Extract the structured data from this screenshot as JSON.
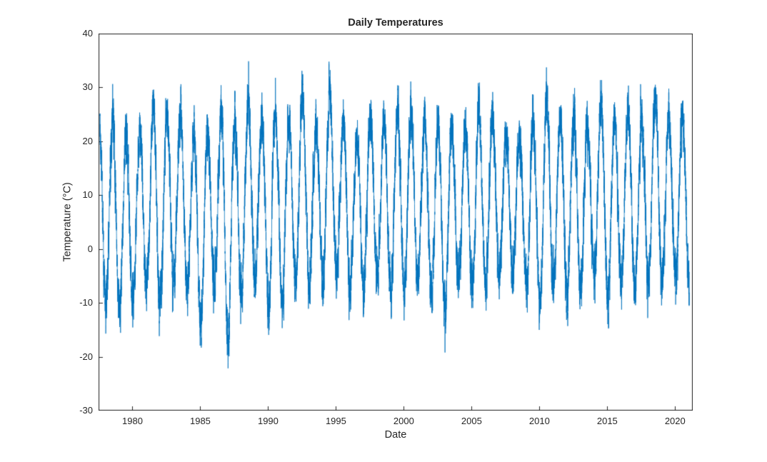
{
  "figure": {
    "background": "#ffffff"
  },
  "chart_data": {
    "type": "line",
    "title": "Daily Temperatures",
    "xlabel": "Date",
    "ylabel": "Temperature (°C)",
    "legend": "none",
    "grid": false,
    "line_color": "#0072BD",
    "axis_color": "#262626",
    "xlim": [
      1977.5,
      2021.3
    ],
    "ylim": [
      -30,
      40
    ],
    "x_ticks": [
      1980,
      1985,
      1990,
      1995,
      2000,
      2005,
      2010,
      2015,
      2020
    ],
    "y_ticks": [
      -30,
      -20,
      -10,
      0,
      10,
      20,
      30,
      40
    ],
    "sampling": "daily",
    "x_start": 1977.6,
    "x_end": 2021.05,
    "year_start": 1977,
    "yearly_summer_max": [
      28,
      29,
      26,
      26.5,
      33,
      31,
      30,
      26.5,
      27,
      30.5,
      28,
      33,
      29,
      30.5,
      29,
      34.5,
      27,
      34.5,
      28.5,
      26,
      30,
      28.5,
      31,
      30.5,
      28,
      28.5,
      28,
      27,
      31,
      29,
      26,
      25.5,
      28,
      34,
      29,
      30,
      27,
      33,
      28,
      31.5,
      28,
      34,
      30,
      30,
      29
    ],
    "yearly_winter_min": [
      -13,
      -14,
      -17,
      -15,
      -12,
      -16,
      -11,
      -12,
      -19.5,
      -12,
      -22.5,
      -13,
      -11,
      -16,
      -15,
      -11,
      -12,
      -11,
      -10,
      -13,
      -12.5,
      -10,
      -14,
      -13,
      -10,
      -14,
      -16.5,
      -11,
      -12,
      -12,
      -9,
      -10,
      -12,
      -16,
      -12,
      -13,
      -12,
      -10,
      -15,
      -11,
      -13,
      -12,
      -11,
      -10,
      -12
    ],
    "model": {
      "seasonal_peak_year_fraction": 0.54,
      "winter_trough_year_fraction": 0.04,
      "noise_day_sigma": 1.7,
      "noise_persistence": 0.65,
      "envelope_noise_margin": 5
    }
  }
}
